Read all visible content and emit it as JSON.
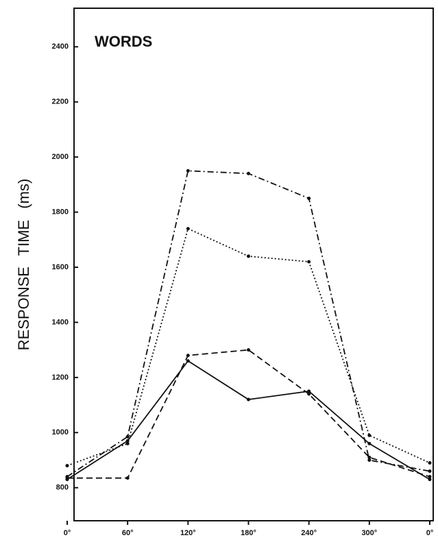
{
  "chart_data": {
    "type": "line",
    "title": "WORDS",
    "y_label": "RESPONSE TIME (ms)",
    "categories": [
      "0°",
      "60°",
      "120°",
      "180°",
      "240°",
      "300°",
      "0°"
    ],
    "ylim": [
      680,
      2540
    ],
    "yticks": [
      800,
      1000,
      1200,
      1400,
      1600,
      1800,
      2000,
      2200,
      2400
    ],
    "grid": false,
    "series": [
      {
        "color": "#111111",
        "linestyle": "dashdot",
        "values": [
          840,
          985,
          1950,
          1940,
          1850,
          900,
          860
        ]
      },
      {
        "color": "#111111",
        "linestyle": "dotted",
        "values": [
          880,
          960,
          1740,
          1640,
          1620,
          990,
          890
        ]
      },
      {
        "color": "#111111",
        "linestyle": "dashed",
        "values": [
          835,
          835,
          1280,
          1300,
          1140,
          910,
          840
        ]
      },
      {
        "color": "#111111",
        "linestyle": "solid",
        "values": [
          830,
          970,
          1260,
          1120,
          1150,
          960,
          830
        ]
      }
    ]
  }
}
